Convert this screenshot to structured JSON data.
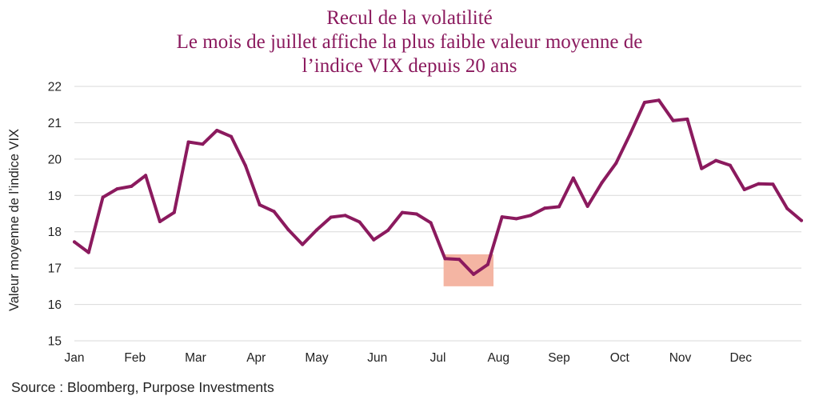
{
  "colors": {
    "title": "#8b1a5e",
    "line": "#8b1a5e",
    "highlight": "#f4b5a3",
    "grid": "#d9d9d9",
    "text": "#222222"
  },
  "chart_data": {
    "type": "line",
    "title": [
      "Recul de la volatilité",
      "Le mois de juillet affiche la plus faible valeur moyenne de",
      "l’indice VIX depuis 20 ans"
    ],
    "ylabel": "Valeur moyenne de l’indice VIX",
    "xlabel": "",
    "ylim": [
      15,
      22
    ],
    "yticks": [
      15,
      16,
      17,
      18,
      19,
      20,
      21,
      22
    ],
    "grid": true,
    "legend": "none",
    "x_month_ticks": [
      "Jan",
      "Feb",
      "Mar",
      "Apr",
      "May",
      "Jun",
      "Jul",
      "Aug",
      "Sep",
      "Oct",
      "Nov",
      "Dec"
    ],
    "series": [
      {
        "values": [
          17.72,
          17.43,
          18.95,
          19.18,
          19.25,
          19.55,
          18.28,
          18.53,
          20.47,
          20.41,
          20.79,
          20.62,
          19.82,
          18.74,
          18.56,
          18.06,
          17.65,
          18.05,
          18.4,
          18.45,
          18.27,
          17.78,
          18.04,
          18.53,
          18.49,
          18.25,
          17.26,
          17.24,
          16.83,
          17.1,
          18.41,
          18.36,
          18.45,
          18.65,
          18.69,
          19.48,
          18.7,
          19.35,
          19.89,
          20.7,
          21.56,
          21.62,
          21.06,
          21.1,
          19.74,
          19.96,
          19.83,
          19.16,
          19.32,
          19.31,
          18.64,
          18.31
        ]
      }
    ],
    "highlight_region": {
      "x_from_week": 25.9,
      "x_to_week": 29.4,
      "y_from": 16.5,
      "y_to": 17.38
    },
    "source": "Source : Bloomberg, Purpose Investments"
  }
}
